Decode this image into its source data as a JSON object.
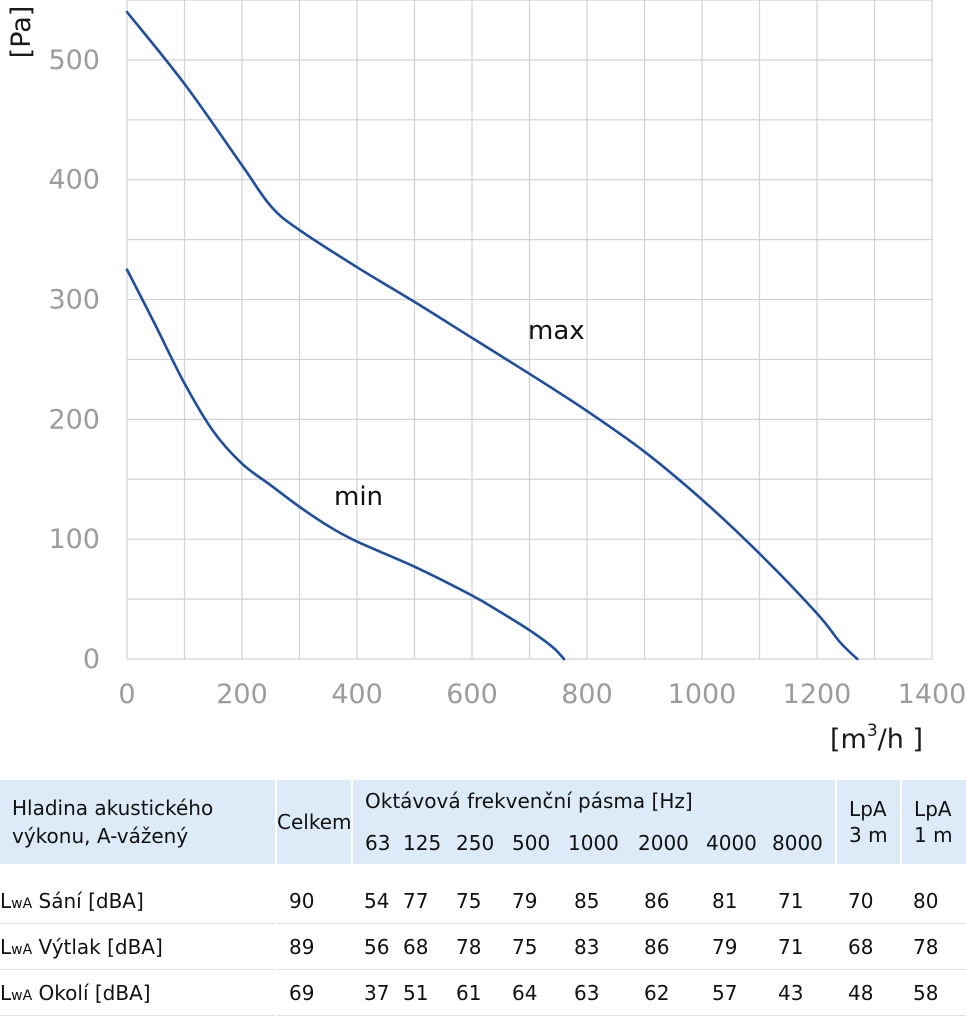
{
  "chart_data": {
    "type": "line",
    "xlim": [
      0,
      1400
    ],
    "ylim": [
      0,
      550
    ],
    "x_ticks": [
      "0",
      "200",
      "400",
      "600",
      "800",
      "1000",
      "1200",
      "1400"
    ],
    "y_ticks": [
      "0",
      "100",
      "200",
      "300",
      "400",
      "500"
    ],
    "ylabel": "[Pa]",
    "xlabel_prefix": "[m",
    "xlabel_sup": "3",
    "xlabel_suffix": "/h ]",
    "grid": true,
    "series": [
      {
        "name": "max",
        "color": "#1f4e9e",
        "x": [
          0,
          100,
          200,
          250,
          300,
          400,
          500,
          600,
          700,
          800,
          900,
          1000,
          1100,
          1200,
          1240,
          1270
        ],
        "y": [
          540,
          480,
          412,
          378,
          358,
          327,
          298,
          268,
          238,
          207,
          173,
          133,
          88,
          38,
          14,
          0
        ]
      },
      {
        "name": "min",
        "color": "#1f4e9e",
        "x": [
          0,
          50,
          100,
          150,
          200,
          250,
          300,
          350,
          400,
          500,
          600,
          650,
          700,
          740,
          760
        ],
        "y": [
          325,
          278,
          230,
          190,
          163,
          145,
          127,
          111,
          98,
          77,
          53,
          39,
          24,
          10,
          0
        ]
      }
    ]
  },
  "table": {
    "header": {
      "row_label_line1": "Hladina akustického",
      "row_label_line2": "výkonu, A-vážený",
      "total": "Celkem",
      "band_group": "Oktávová frekvenční pásma [Hz]",
      "bands": [
        "63",
        "125",
        "250",
        "500",
        "1000",
        "2000",
        "4000",
        "8000"
      ],
      "lpa3_line1": "LpA",
      "lpa3_line2": "3 m",
      "lpa1_line1": "LpA",
      "lpa1_line2": "1 m"
    },
    "rows": [
      {
        "lw": "L",
        "lw_sub": "wA",
        "label": " Sání [dBA]",
        "values": [
          "90",
          "54",
          "77",
          "75",
          "79",
          "85",
          "86",
          "81",
          "71",
          "70",
          "80"
        ]
      },
      {
        "lw": "L",
        "lw_sub": "wA",
        "label": " Výtlak [dBA]",
        "values": [
          "89",
          "56",
          "68",
          "78",
          "75",
          "83",
          "86",
          "79",
          "71",
          "68",
          "78"
        ]
      },
      {
        "lw": "L",
        "lw_sub": "wA",
        "label": " Okolí [dBA]",
        "values": [
          "69",
          "37",
          "51",
          "61",
          "64",
          "63",
          "62",
          "57",
          "43",
          "48",
          "58"
        ]
      }
    ]
  }
}
